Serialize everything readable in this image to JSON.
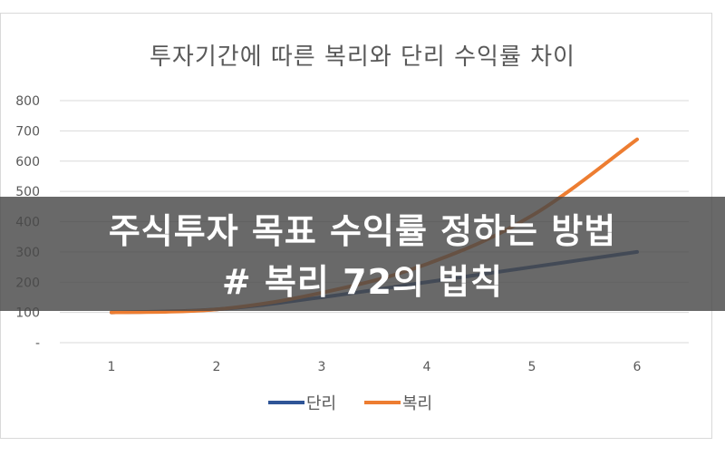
{
  "chart_data": {
    "type": "line",
    "title": "투자기간에 따른 복리와 단리 수익률 차이",
    "categories": [
      "1",
      "2",
      "3",
      "4",
      "5",
      "6"
    ],
    "y_ticks": [
      "-",
      "100",
      "200",
      "300",
      "400",
      "500",
      "600",
      "700",
      "800"
    ],
    "ylim": [
      0,
      800
    ],
    "grid": true,
    "legend_position": "bottom",
    "series": [
      {
        "name": "단리",
        "color": "#2f5597",
        "values": [
          100,
          110,
          150,
          200,
          250,
          300
        ]
      },
      {
        "name": "복리",
        "color": "#ed7d31",
        "values": [
          100,
          110,
          165,
          260,
          420,
          672
        ]
      }
    ]
  },
  "banner": {
    "line1": "주식투자 목표 수익률 정하는 방법",
    "line2": "# 복리 72의 법칙"
  }
}
